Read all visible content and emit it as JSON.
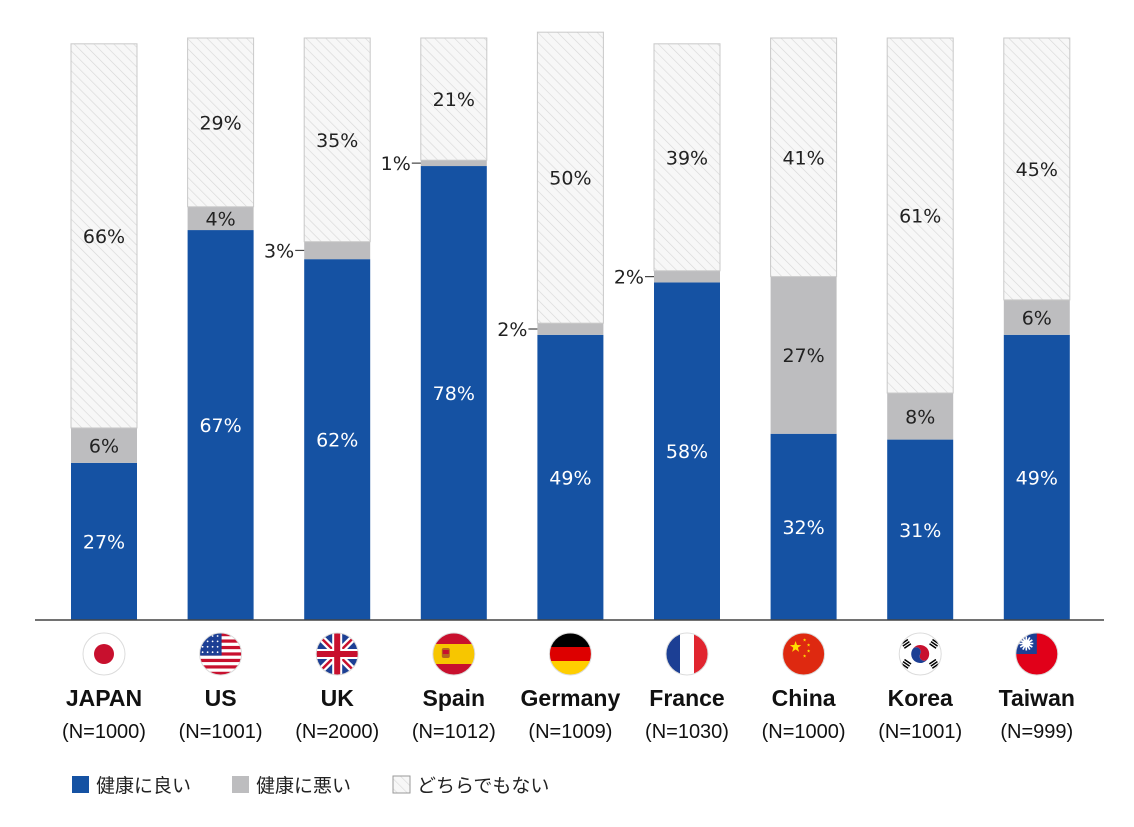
{
  "chart_data": {
    "type": "bar",
    "stacked": true,
    "categories": [
      "JAPAN",
      "US",
      "UK",
      "Spain",
      "Germany",
      "France",
      "China",
      "Korea",
      "Taiwan"
    ],
    "sample_sizes": [
      "(N=1000)",
      "(N=1001)",
      "(N=2000)",
      "(N=1012)",
      "(N=1009)",
      "(N=1030)",
      "(N=1000)",
      "(N=1001)",
      "(N=999)"
    ],
    "flag_icons": [
      "japan-flag-icon",
      "us-flag-icon",
      "uk-flag-icon",
      "spain-flag-icon",
      "germany-flag-icon",
      "france-flag-icon",
      "china-flag-icon",
      "korea-flag-icon",
      "taiwan-flag-icon"
    ],
    "unit": "%",
    "series": [
      {
        "name": "健康に良い",
        "color": "#1552a3",
        "values": [
          27,
          67,
          62,
          78,
          49,
          58,
          32,
          31,
          49
        ]
      },
      {
        "name": "健康に悪い",
        "color": "#bdbdbf",
        "values": [
          6,
          4,
          3,
          1,
          2,
          2,
          27,
          8,
          6
        ]
      },
      {
        "name": "どちらでもない",
        "color": "#f5f5f5",
        "pattern": "diagonal-hatch",
        "values": [
          66,
          29,
          35,
          21,
          50,
          39,
          41,
          61,
          45
        ]
      }
    ],
    "legend_position": "bottom-left",
    "grid": false,
    "title": "",
    "xlabel": "",
    "ylabel": ""
  }
}
